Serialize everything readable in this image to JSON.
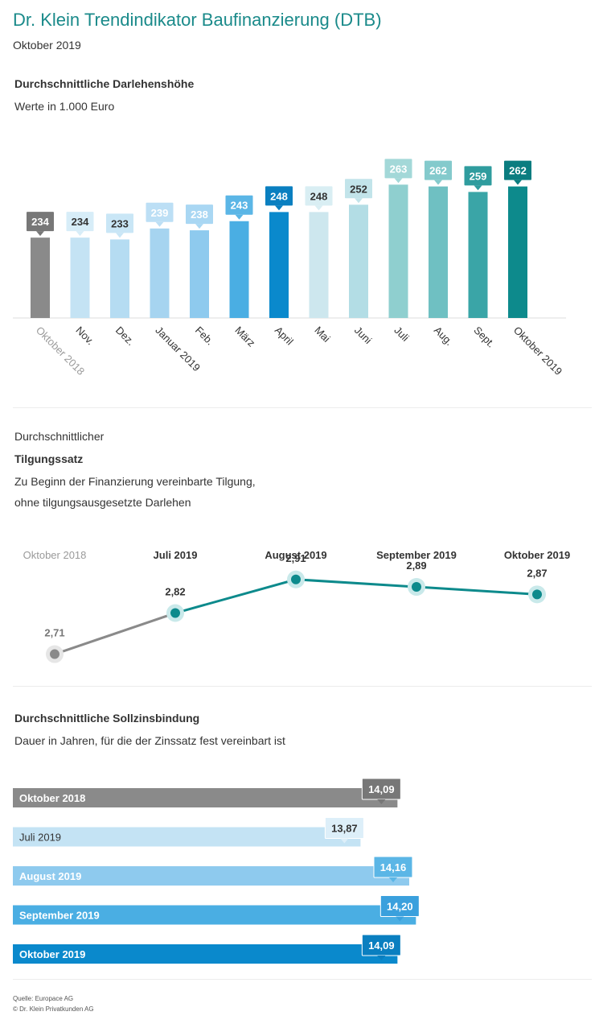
{
  "header": {
    "title": "Dr. Klein Trendindikator Baufinanzierung (DTB)",
    "subtitle": "Oktober 2019"
  },
  "section1": {
    "title": "Durchschnittliche Darlehenshöhe",
    "subtitle": "Werte in 1.000 Euro"
  },
  "section2": {
    "line1": "Durchschnittlicher",
    "title": "Tilgungssatz",
    "line3": "Zu Beginn der Finanzierung vereinbarte Tilgung,",
    "line4": "ohne tilgungsausgesetzte Darlehen"
  },
  "section3": {
    "title": "Durchschnittliche Sollzinsbindung",
    "subtitle": "Dauer in Jahren, für die der Zinssatz fest vereinbart ist"
  },
  "footer": {
    "source": "Quelle: Europace AG",
    "copyright": "© Dr. Klein Privatkunden AG"
  },
  "chart_data": [
    {
      "type": "bar",
      "title": "Durchschnittliche Darlehenshöhe",
      "subtitle": "Werte in 1.000 Euro",
      "categories": [
        "Oktober 2018",
        "Nov.",
        "Dez.",
        "Januar 2019",
        "Feb.",
        "März",
        "April",
        "Mai",
        "Juni",
        "Juli",
        "Aug.",
        "Sept.",
        "Oktober 2019"
      ],
      "values": [
        234,
        234,
        233,
        239,
        238,
        243,
        248,
        248,
        252,
        263,
        262,
        259,
        262
      ],
      "labels": [
        "234",
        "234",
        "233",
        "239",
        "238",
        "243",
        "248",
        "248",
        "252",
        "263",
        "262",
        "259",
        "262"
      ],
      "colors": [
        "#8a8a8a",
        "#c4e3f4",
        "#b5dcf2",
        "#a6d4f0",
        "#8ecaee",
        "#4aaee3",
        "#0a89cc",
        "#cde7ee",
        "#b3dde5",
        "#8fcfcf",
        "#6fc0c2",
        "#3aa5a7",
        "#0d8a8c"
      ],
      "label_bg": [
        "#777777",
        "#d7edf8",
        "#c9e6f6",
        "#bcdff5",
        "#a9d7f3",
        "#5bb6e6",
        "#0a7fc0",
        "#d9eef3",
        "#c2e4ea",
        "#a3d8d8",
        "#84cacc",
        "#2f9c9e",
        "#0b7d80"
      ],
      "label_color": [
        "#ffffff",
        "#333333",
        "#333333",
        "#ffffff",
        "#ffffff",
        "#ffffff",
        "#ffffff",
        "#333333",
        "#333333",
        "#ffffff",
        "#ffffff",
        "#ffffff",
        "#ffffff"
      ],
      "label_weight": [
        "bold",
        "bold",
        "bold",
        "bold",
        "bold",
        "bold",
        "bold",
        "bold",
        "bold",
        "bold",
        "bold",
        "bold",
        "bold"
      ],
      "ylim": [
        190,
        268
      ],
      "grid": false
    },
    {
      "type": "line",
      "title": "Tilgungssatz",
      "categories": [
        "Oktober 2018",
        "Juli 2019",
        "August 2019",
        "September 2019",
        "Oktober 2019"
      ],
      "values": [
        2.71,
        2.82,
        2.91,
        2.89,
        2.87
      ],
      "labels": [
        "2,71",
        "2,82",
        "2,91",
        "2,89",
        "2,87"
      ],
      "colors": [
        "#8a8a8a",
        "#0d8a8c"
      ],
      "ylim": [
        2.5,
        3.0
      ]
    },
    {
      "type": "bar",
      "orientation": "horizontal",
      "title": "Durchschnittliche Sollzinsbindung",
      "subtitle": "Dauer in Jahren, für die der Zinssatz fest vereinbart ist",
      "categories": [
        "Oktober 2018",
        "Juli 2019",
        "August 2019",
        "September 2019",
        "Oktober 2019"
      ],
      "values": [
        14.09,
        13.87,
        14.16,
        14.2,
        14.09
      ],
      "labels": [
        "14,09",
        "13,87",
        "14,16",
        "14,20",
        "14,09"
      ],
      "colors": [
        "#8a8a8a",
        "#c4e3f4",
        "#8ecaee",
        "#4aaee3",
        "#0a89cc"
      ],
      "label_bg": [
        "#777777",
        "#ddeff9",
        "#5bb6e6",
        "#3aa0dd",
        "#0a7fc0"
      ],
      "label_color": [
        "#ffffff",
        "#333333",
        "#ffffff",
        "#ffffff",
        "#ffffff"
      ],
      "cat_color": [
        "#ffffff",
        "#333333",
        "#ffffff",
        "#ffffff",
        "#ffffff"
      ],
      "xlim": [
        11.8,
        14.5
      ]
    }
  ]
}
